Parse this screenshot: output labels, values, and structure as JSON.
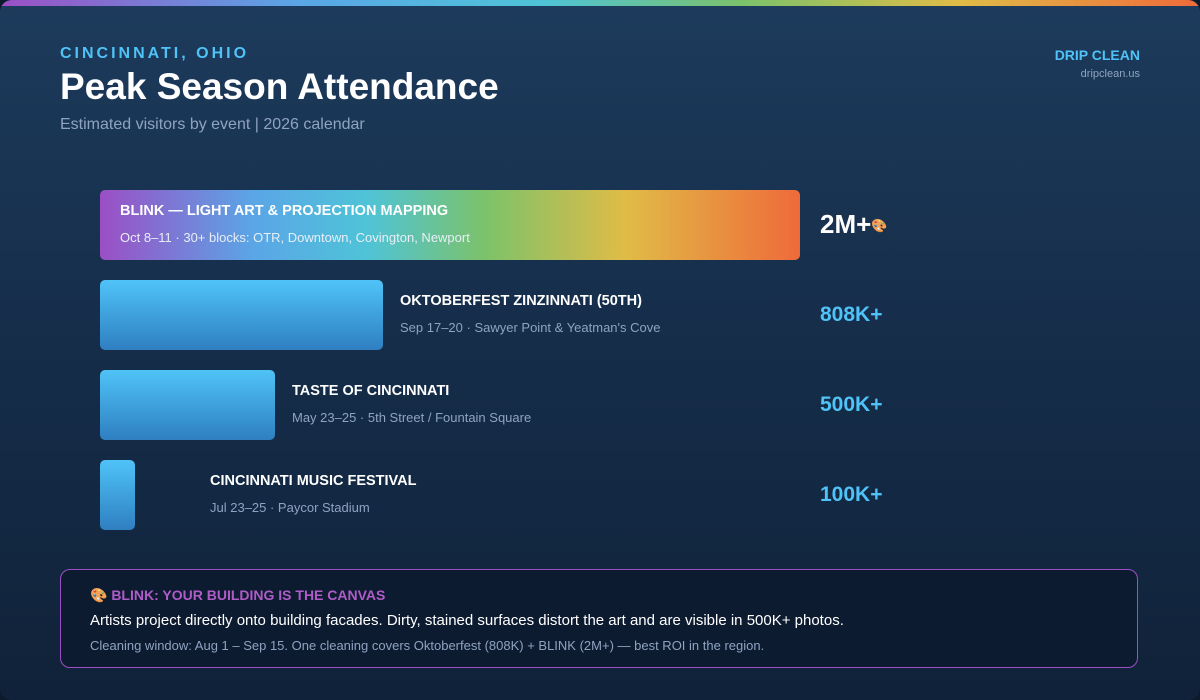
{
  "header": {
    "eyebrow": "CINCINNATI, OHIO",
    "title": "Peak Season Attendance",
    "subtitle": "Estimated visitors by event | 2026 calendar"
  },
  "brand": {
    "name": "DRIP CLEAN",
    "url": "dripclean.us"
  },
  "chart_data": {
    "type": "bar",
    "orientation": "horizontal",
    "categories": [
      "BLINK — LIGHT ART & PROJECTION MAPPING",
      "OKTOBERFEST ZINZINNATI (50TH)",
      "TASTE OF CINCINNATI",
      "CINCINNATI MUSIC FESTIVAL"
    ],
    "values": [
      2000000,
      808000,
      500000,
      100000
    ],
    "details": [
      "Oct 8–11 · 30+ blocks: OTR, Downtown, Covington, Newport",
      "Sep 17–20 · Sawyer Point & Yeatman's Cove",
      "May 23–25 · 5th Street / Fountain Square",
      "Jul 23–25 · Paycor Stadium"
    ],
    "value_labels": [
      "2M+",
      "808K+",
      "500K+",
      "100K+"
    ],
    "value_marker": "🎨",
    "xlim": [
      0,
      2000000
    ],
    "grid": false,
    "legend": "none",
    "colors": {
      "featured": [
        "#9b4fc4",
        "#5aa6e6",
        "#4fc3d8",
        "#7cc26a",
        "#e0bc47",
        "#ef6a3a"
      ],
      "bar_top": "#4fc3f7",
      "bar_bottom": "#2f7fc1"
    }
  },
  "callout": {
    "title": "🎨 BLINK: YOUR BUILDING IS THE CANVAS",
    "body": "Artists project directly onto building facades. Dirty, stained surfaces distort the art and are visible in 500K+ photos.",
    "note": "Cleaning window: Aug 1 – Sep 15. One cleaning covers Oktoberfest (808K) + BLINK (2M+) — best ROI in the region."
  }
}
